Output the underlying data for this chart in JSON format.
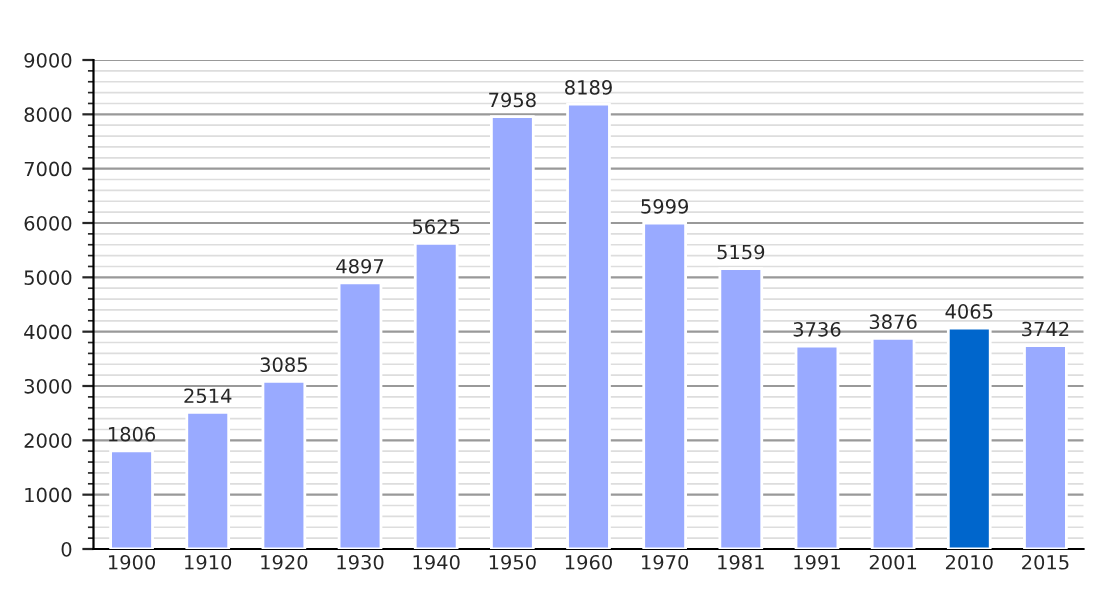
{
  "chart_data": {
    "type": "bar",
    "categories": [
      "1900",
      "1910",
      "1920",
      "1930",
      "1940",
      "1950",
      "1960",
      "1970",
      "1981",
      "1991",
      "2001",
      "2010",
      "2015"
    ],
    "values": [
      1806,
      2514,
      3085,
      4897,
      5625,
      7958,
      8189,
      5999,
      5159,
      3736,
      3876,
      4065,
      3742
    ],
    "colors": [
      "#99aaff",
      "#99aaff",
      "#99aaff",
      "#99aaff",
      "#99aaff",
      "#99aaff",
      "#99aaff",
      "#99aaff",
      "#99aaff",
      "#99aaff",
      "#99aaff",
      "#0066cc",
      "#99aaff"
    ],
    "ylim": [
      0,
      9000
    ],
    "yticks": [
      0,
      1000,
      2000,
      3000,
      4000,
      5000,
      6000,
      7000,
      8000,
      9000
    ],
    "grid": "y",
    "data_labels": true
  }
}
